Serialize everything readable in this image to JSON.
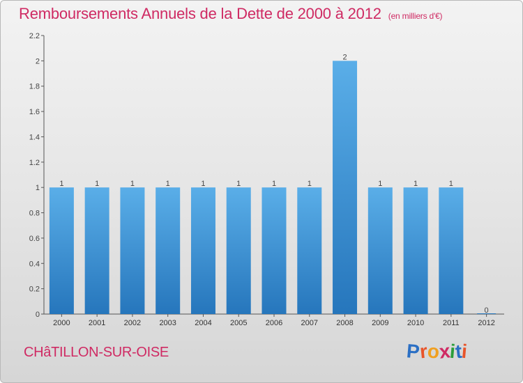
{
  "title": "Remboursements Annuels de la Dette de 2000 à 2012",
  "subtitle": "(en milliers d'€)",
  "commune": "CHâTILLON-SUR-OISE",
  "logo": {
    "letters": [
      "P",
      "r",
      "o",
      "x",
      "i",
      "t",
      "i"
    ],
    "colors": [
      "#2b6fc4",
      "#e8542a",
      "#f0a020",
      "#cf2a63",
      "#2b9e3a",
      "#2b6fc4",
      "#e8542a"
    ]
  },
  "colors": {
    "bar": "#4a9ee0",
    "bar_dark": "#2b79c0",
    "title": "#cf2a63"
  },
  "chart_data": {
    "type": "bar",
    "categories": [
      "2000",
      "2001",
      "2002",
      "2003",
      "2004",
      "2005",
      "2006",
      "2007",
      "2008",
      "2009",
      "2010",
      "2011",
      "2012"
    ],
    "values": [
      1,
      1,
      1,
      1,
      1,
      1,
      1,
      1,
      2,
      1,
      1,
      1,
      0
    ],
    "data_labels": [
      "1",
      "1",
      "1",
      "1",
      "1",
      "1",
      "1",
      "1",
      "2",
      "1",
      "1",
      "1",
      "0"
    ],
    "yticks": [
      0,
      0.2,
      0.4,
      0.6,
      0.8,
      1,
      1.2,
      1.4,
      1.6,
      1.8,
      2,
      2.2
    ],
    "ytick_labels": [
      "0",
      "0.2",
      "0.4",
      "0.6",
      "0.8",
      "1",
      "1.2",
      "1.4",
      "1.6",
      "1.8",
      "2",
      "2.2"
    ],
    "ylim": [
      0,
      2.2
    ],
    "grid": false,
    "legend": "none"
  }
}
